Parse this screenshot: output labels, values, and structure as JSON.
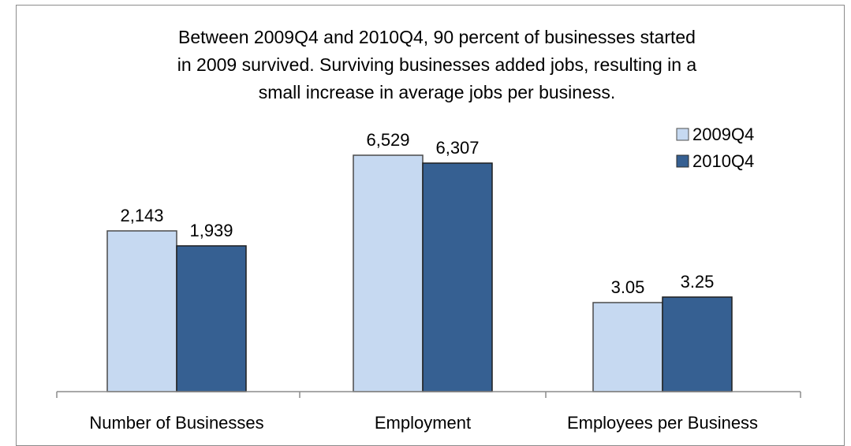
{
  "chart_data": {
    "type": "bar",
    "title_lines": [
      "Between 2009Q4 and 2010Q4, 90 percent of businesses started",
      "in 2009 survived. Surviving businesses added jobs, resulting in a",
      "small increase in average jobs per business."
    ],
    "categories": [
      "Number of Businesses",
      "Employment",
      "Employees per Business"
    ],
    "series": [
      {
        "name": "2009Q4",
        "color": "#c6d9f1",
        "values": [
          2143,
          6529,
          3.05
        ],
        "labels": [
          "2,143",
          "6,529",
          "3.05"
        ]
      },
      {
        "name": "2010Q4",
        "color": "#366092",
        "values": [
          1939,
          6307,
          3.25
        ],
        "labels": [
          "1,939",
          "6,307",
          "3.25"
        ]
      }
    ],
    "legend_position": "top-right",
    "grid": false,
    "y_axis_visible": false
  }
}
